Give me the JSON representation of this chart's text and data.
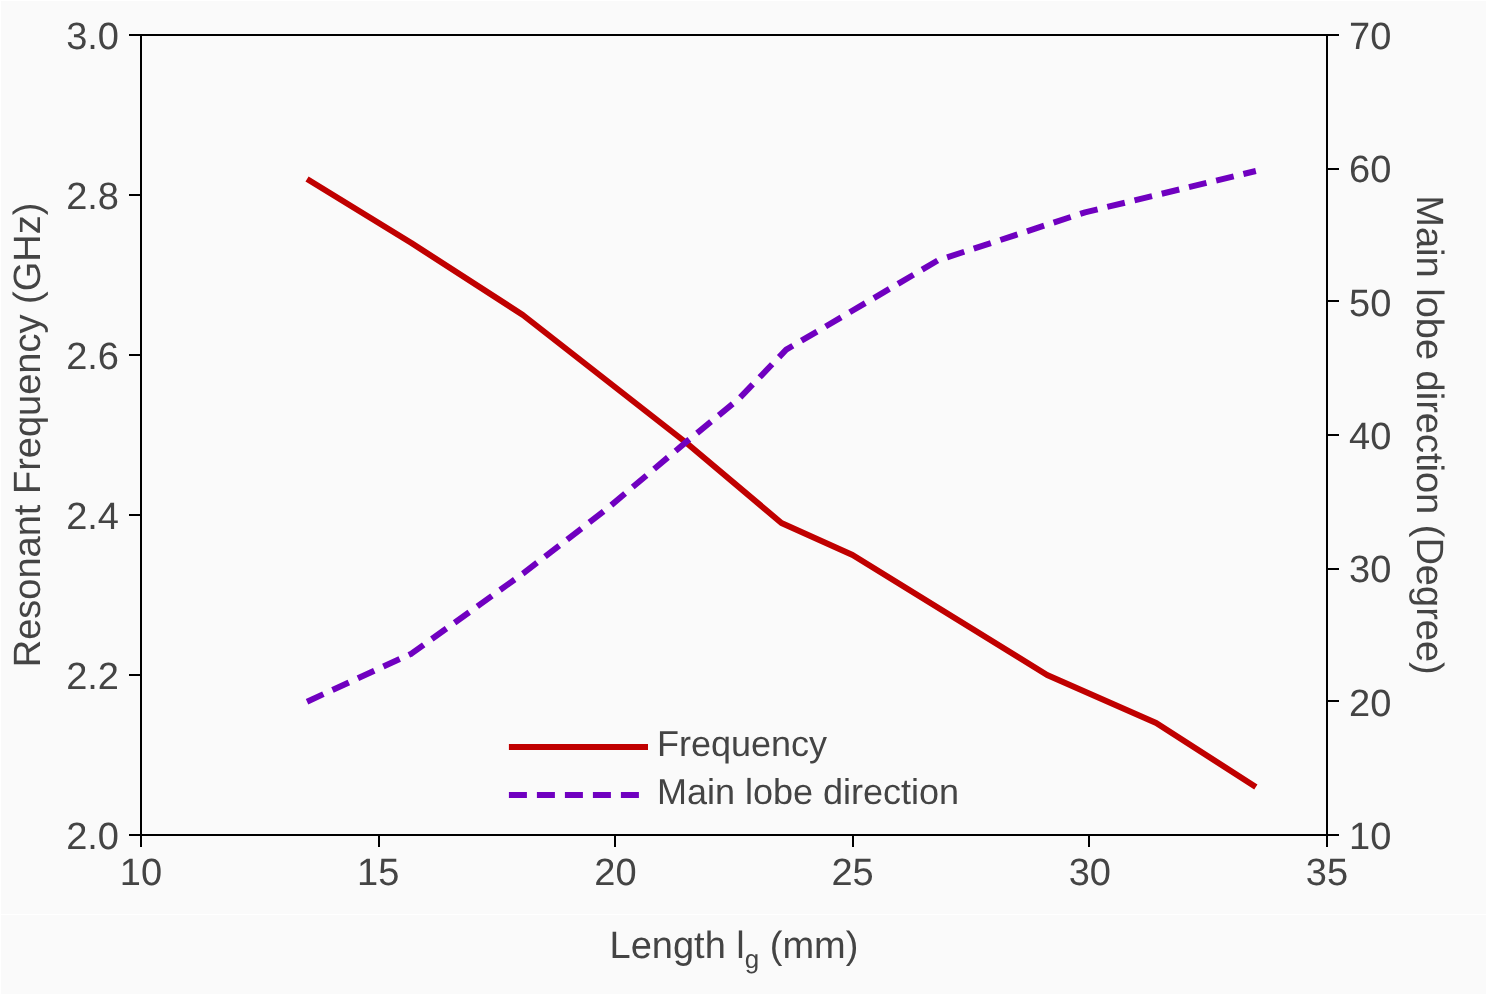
{
  "chart_data": {
    "type": "line",
    "xlabel": "Length l$_{g}$ (mm)",
    "ylabel": "Resonant Frequency (GHz)",
    "y2label": "Main lobe direction (Degree)",
    "xlim": [
      10,
      35
    ],
    "xticks": [
      10,
      15,
      20,
      25,
      30,
      35
    ],
    "ylim": [
      2.0,
      3.0
    ],
    "yticks": [
      {
        "value": 2.0,
        "label": "2.0"
      },
      {
        "value": 2.2,
        "label": "2.2"
      },
      {
        "value": 2.4,
        "label": "2.4"
      },
      {
        "value": 2.6,
        "label": "2.6"
      },
      {
        "value": 2.8,
        "label": "2.8"
      },
      {
        "value": 3.0,
        "label": "3.0"
      }
    ],
    "y2lim": [
      10,
      70
    ],
    "y2ticks": [
      10,
      20,
      30,
      40,
      50,
      60,
      70
    ],
    "grid": false,
    "legend": "bottom",
    "series": [
      {
        "name": "Frequency",
        "color": "#c00000",
        "line_style": "solid",
        "x": [
          13.5,
          15.7,
          18.05,
          21.5,
          23.5,
          25,
          29.1,
          31.4,
          33.5
        ],
        "values": [
          2.82,
          2.74,
          2.65,
          2.49,
          2.39,
          2.35,
          2.2,
          2.14,
          2.06
        ]
      },
      {
        "name": "Main lobe direction",
        "color": "#7000c0",
        "line_style": "dashed",
        "axis": "y2",
        "x": [
          13.5,
          15.7,
          18.05,
          19.8,
          21.5,
          22.6,
          23.6,
          26.8,
          29.9,
          33.5
        ],
        "values": [
          20,
          23.6,
          29.6,
          34.4,
          39.5,
          42.7,
          46.4,
          53.1,
          56.7,
          59.8
        ]
      }
    ]
  }
}
